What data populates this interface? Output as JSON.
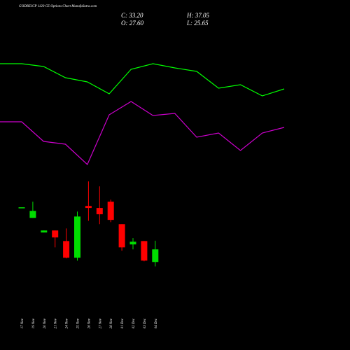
{
  "header": {
    "title": "GODREJCP 1120  CE Options  Chart MunafaSutra.com",
    "close": "C: 33.20",
    "open": "O: 27.60",
    "high": "H: 37.05",
    "low": "L: 25.65"
  },
  "chart_data": [
    {
      "type": "line",
      "ylim": [
        0,
        100
      ],
      "series": [
        {
          "color": "#00ff00",
          "values": [
            79.5,
            77.5,
            69.5,
            66.5,
            58,
            75.5,
            79.5,
            76.5,
            74,
            62,
            64.5,
            56.5,
            61.5
          ]
        },
        {
          "color": "#cc00cc",
          "values": [
            38,
            24,
            22,
            7.5,
            43,
            52.5,
            42.5,
            44,
            27,
            30,
            17.5,
            30,
            34
          ]
        }
      ]
    },
    {
      "type": "candlestick",
      "ylim": [
        0,
        144
      ],
      "up_color": "#00dd00",
      "down_color": "#ff0000",
      "categories": [
        "17 Nov",
        "19 Nov",
        "20 Nov",
        "21 Nov",
        "24 Nov",
        "25 Nov",
        "26 Nov",
        "27 Nov",
        "28 Nov",
        "01 Dec",
        "02 Dec",
        "03 Dec",
        "04 Dec"
      ],
      "open": [
        51.9,
        47.2,
        40.7,
        41.6,
        36.9,
        29.5,
        52.5,
        51.6,
        54.4,
        44.4,
        35.4,
        36.9,
        27.6
      ],
      "high": [
        51.9,
        54.4,
        41.6,
        41.6,
        42.5,
        50.0,
        63.4,
        61.2,
        55.3,
        44.4,
        38.2,
        36.9,
        37.05
      ],
      "low": [
        51.9,
        47.2,
        40.7,
        34.1,
        29.2,
        28.2,
        45.9,
        44.4,
        45.3,
        32.6,
        33.2,
        27.9,
        25.65
      ],
      "close": [
        51.9,
        50.3,
        41.6,
        38.5,
        29.5,
        47.8,
        51.6,
        48.8,
        46.3,
        34.1,
        36.6,
        28.2,
        33.2
      ]
    }
  ]
}
